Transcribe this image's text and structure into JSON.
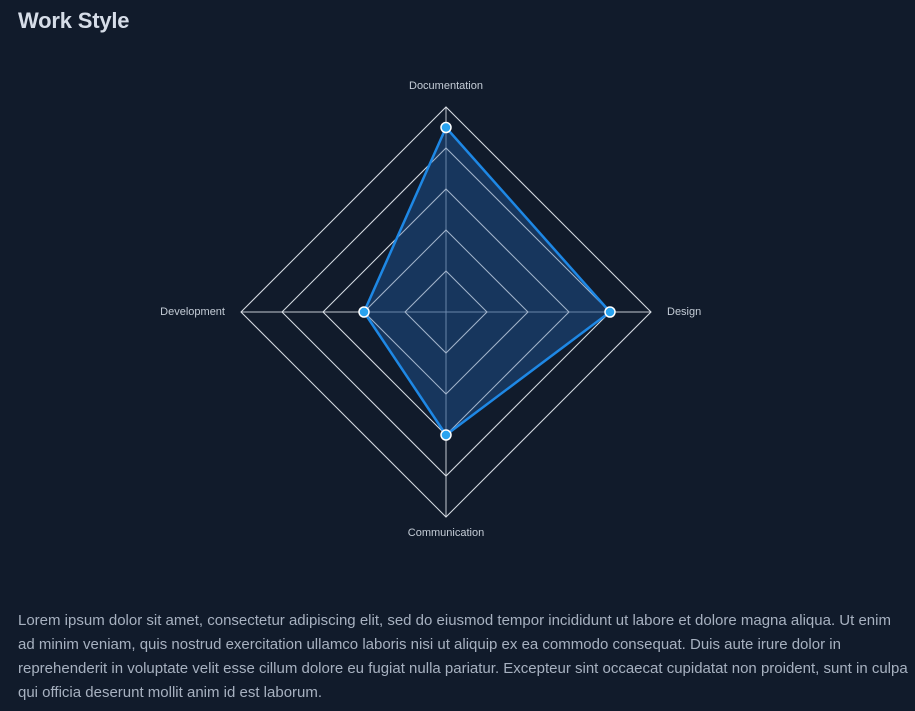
{
  "header": {
    "title": "Work Style"
  },
  "chart_data": {
    "type": "radar",
    "axes": [
      "Documentation",
      "Design",
      "Communication",
      "Development"
    ],
    "values": [
      90,
      80,
      60,
      40
    ],
    "rmax": 100,
    "rings": 5,
    "colors": {
      "line": "#1e88e5",
      "fill": "#1e4d87",
      "point": "#29a3f0",
      "point_stroke": "#ffffff",
      "grid": "#e4e9f0",
      "label": "#c4ccd6"
    }
  },
  "body": {
    "description": "Lorem ipsum dolor sit amet, consectetur adipiscing elit, sed do eiusmod tempor incididunt ut labore et dolore magna aliqua. Ut enim ad minim veniam, quis nostrud exercitation ullamco laboris nisi ut aliquip ex ea commodo consequat. Duis aute irure dolor in reprehenderit in voluptate velit esse cillum dolore eu fugiat nulla pariatur. Excepteur sint occaecat cupidatat non proident, sunt in culpa qui officia deserunt mollit anim id est laborum."
  }
}
